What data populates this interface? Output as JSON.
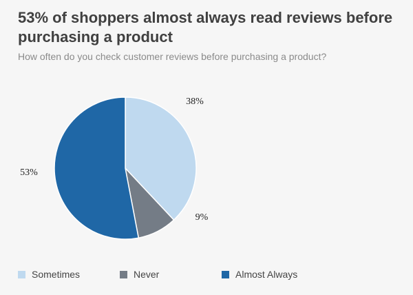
{
  "title": "53% of shoppers almost always read reviews before purchasing a product",
  "subtitle": "How often do you check customer reviews before purchasing a product?",
  "chart_data": {
    "type": "pie",
    "title": "53% of shoppers almost always read reviews before purchasing a product",
    "subtitle": "How often do you check customer reviews before purchasing a product?",
    "slices": [
      {
        "label": "Sometimes",
        "value": 38,
        "display": "38%",
        "color": "#bfd9ef"
      },
      {
        "label": "Never",
        "value": 9,
        "display": "9%",
        "color": "#747c86"
      },
      {
        "label": "Almost Always",
        "value": 53,
        "display": "53%",
        "color": "#1f67a6"
      }
    ],
    "legend_placement": "bottom"
  }
}
